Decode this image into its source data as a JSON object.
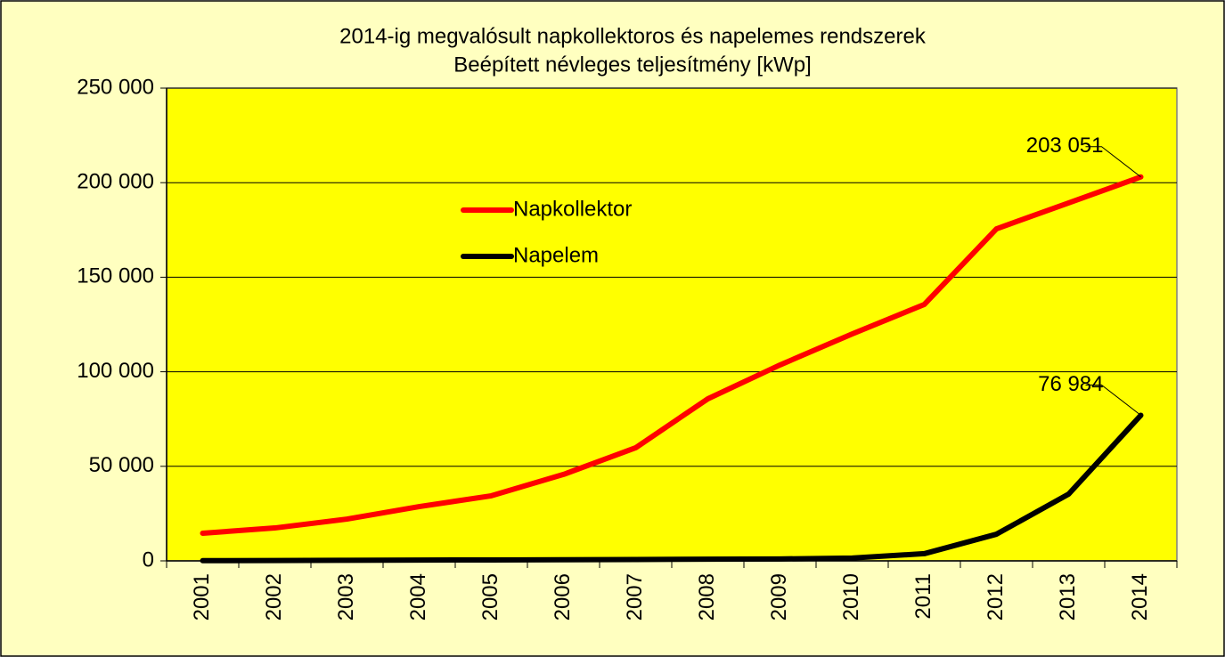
{
  "chart_data": {
    "type": "line",
    "title": "2014-ig megvalósult napkollektoros és napelemes rendszerek",
    "subtitle": "Beépített névleges teljesítmény [kWp]",
    "categories": [
      "2001",
      "2002",
      "2003",
      "2004",
      "2005",
      "2006",
      "2007",
      "2008",
      "2009",
      "2010",
      "2011",
      "2012",
      "2013",
      "2014"
    ],
    "series": [
      {
        "name": "Napkollektor",
        "color": "#ff0000",
        "values": [
          14600,
          17400,
          22100,
          28700,
          34400,
          45700,
          59800,
          85700,
          103600,
          120000,
          135600,
          175600,
          189300,
          203051
        ],
        "value_labels": [
          null,
          null,
          null,
          null,
          null,
          null,
          null,
          null,
          null,
          null,
          null,
          null,
          null,
          "203 051"
        ]
      },
      {
        "name": "Napelem",
        "color": "#000000",
        "values": [
          100,
          200,
          300,
          400,
          500,
          600,
          700,
          900,
          1000,
          1500,
          3800,
          14100,
          35300,
          76984
        ],
        "value_labels": [
          null,
          null,
          null,
          null,
          null,
          null,
          null,
          null,
          null,
          null,
          null,
          null,
          null,
          "76 984"
        ]
      }
    ],
    "ylim": [
      0,
      250000
    ],
    "yticks": [
      0,
      {
        "value": 50000,
        "label": "50 000"
      },
      {
        "value": 100000,
        "label": "100 000"
      },
      {
        "value": 150000,
        "label": "150 000"
      },
      {
        "value": 200000,
        "label": "200 000"
      },
      {
        "value": 250000,
        "label": "250 000"
      }
    ],
    "grid": true,
    "legend": "inside",
    "plot_color": "#ffff00",
    "background_color": "#ffffc0"
  }
}
